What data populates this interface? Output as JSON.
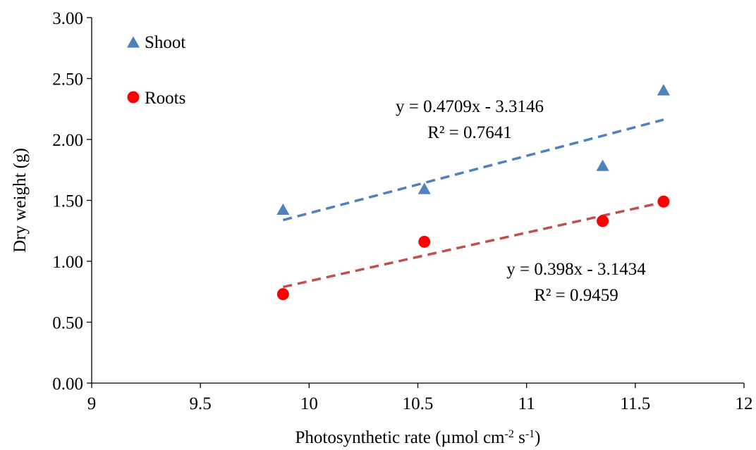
{
  "chart_data": {
    "type": "scatter",
    "xlabel": {
      "main": "Photosynthetic rate (µmol cm",
      "sup1": "-2",
      "mid": " s",
      "sup2": "-1",
      "end": ")"
    },
    "ylabel": "Dry weight (g)",
    "xlim": [
      9,
      12
    ],
    "ylim": [
      0,
      3
    ],
    "x_ticks": [
      9,
      9.5,
      10,
      10.5,
      11,
      11.5,
      12
    ],
    "x_tick_labels": [
      "9",
      "9.5",
      "10",
      "10.5",
      "11",
      "11.5",
      "12"
    ],
    "y_ticks": [
      0,
      0.5,
      1,
      1.5,
      2,
      2.5,
      3
    ],
    "y_tick_labels": [
      "0.00",
      "0.50",
      "1.00",
      "1.50",
      "2.00",
      "2.50",
      "3.00"
    ],
    "grid": false,
    "legend_position": "top-left",
    "series": [
      {
        "name": "Shoot",
        "marker": "triangle",
        "color": "#4f81bd",
        "trend_color": "#4f81bd",
        "x": [
          9.88,
          10.53,
          11.35,
          11.63
        ],
        "y": [
          1.42,
          1.59,
          1.78,
          2.4
        ],
        "trendline": {
          "slope": 0.4709,
          "intercept": -3.3146,
          "x_range": [
            9.88,
            11.63
          ],
          "equation": "y = 0.4709x - 3.3146",
          "r2": "R² = 0.7641"
        }
      },
      {
        "name": "Roots",
        "marker": "circle",
        "color": "#ff0000",
        "trend_color": "#c0504d",
        "x": [
          9.88,
          10.53,
          11.35,
          11.63
        ],
        "y": [
          0.73,
          1.16,
          1.33,
          1.49
        ],
        "trendline": {
          "slope": 0.398,
          "intercept": -3.1434,
          "x_range": [
            9.88,
            11.63
          ],
          "equation": "y = 0.398x - 3.1434",
          "r2": "R² = 0.9459"
        }
      }
    ]
  }
}
